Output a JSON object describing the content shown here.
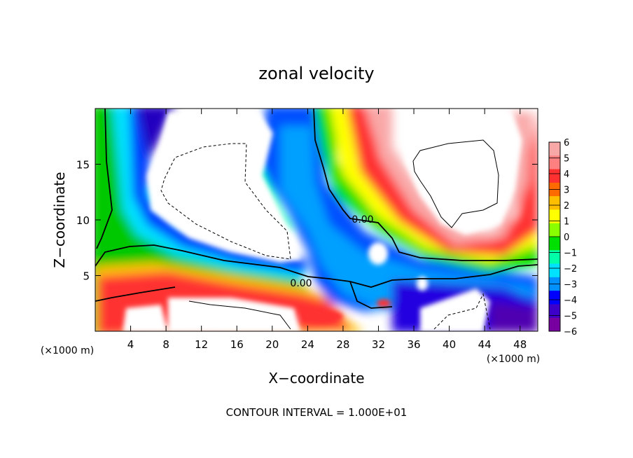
{
  "chart_data": {
    "type": "heatmap",
    "title": "zonal velocity",
    "xlabel": "X−coordinate",
    "ylabel": "Z−coordinate",
    "x_unit_left": "(×1000 m)",
    "x_unit_right": "(×1000 m)",
    "xlim": [
      0,
      50
    ],
    "ylim": [
      0,
      20
    ],
    "x_ticks": [
      4,
      8,
      12,
      16,
      20,
      24,
      28,
      32,
      36,
      40,
      44,
      48
    ],
    "y_ticks": [
      5,
      10,
      15
    ],
    "contour_labels": [
      {
        "text": "0.00",
        "x": 30.5,
        "y": 10.2
      },
      {
        "text": "0.00",
        "x": 23.3,
        "y": 4.3
      }
    ],
    "footer": "CONTOUR INTERVAL = 1.000E+01",
    "colorbar": {
      "levels": [
        6,
        5,
        4,
        3,
        2,
        1,
        0,
        -1,
        -2,
        -3,
        -4,
        -5,
        -6
      ],
      "labels": [
        "6",
        "5",
        "4",
        "3",
        "2",
        "1",
        "0",
        "−1",
        "−2",
        "−3",
        "−4",
        "−5",
        "−6"
      ],
      "colors": [
        "#f9a8a8",
        "#ff8080",
        "#ff3030",
        "#ff6a00",
        "#ffbf00",
        "#ffff00",
        "#8aff00",
        "#00e000",
        "#00ffa8",
        "#00e0ff",
        "#0090ff",
        "#0000ff",
        "#3c00c8",
        "#7800a0"
      ]
    }
  }
}
